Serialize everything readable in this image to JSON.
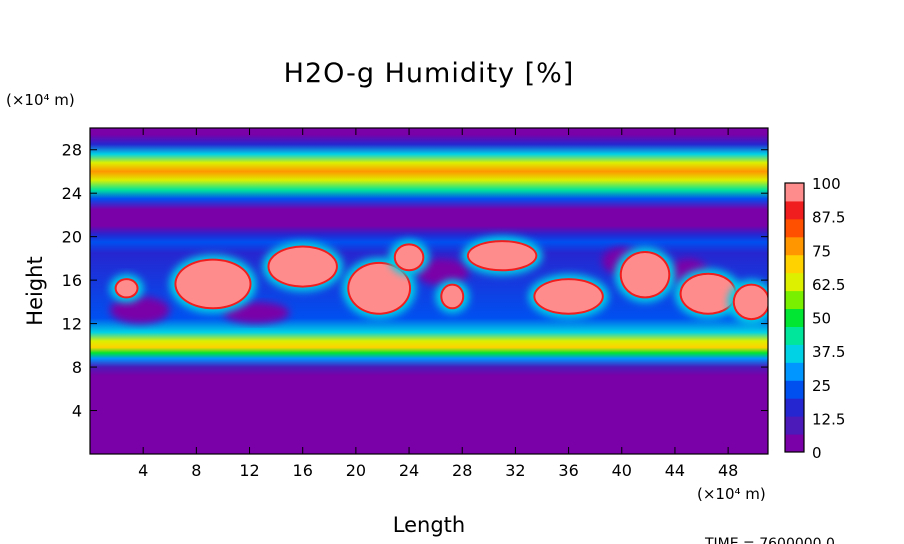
{
  "chart_data": {
    "type": "heatmap",
    "title": "H2O-g Humidity [%]",
    "xlabel": "Length",
    "ylabel": "Height",
    "x_unit": "(×10⁴ m)",
    "y_unit": "(×10⁴ m)",
    "xlim": [
      0,
      51
    ],
    "ylim": [
      0,
      30
    ],
    "x_ticks": [
      "4",
      "8",
      "12",
      "16",
      "20",
      "24",
      "28",
      "32",
      "36",
      "40",
      "44",
      "48"
    ],
    "y_ticks": [
      "4",
      "8",
      "12",
      "16",
      "20",
      "24",
      "28"
    ],
    "colorbar": {
      "min": 0,
      "max": 100,
      "labels": [
        "100",
        "87.5",
        "75",
        "62.5",
        "50",
        "37.5",
        "25",
        "12.5",
        "0"
      ],
      "colors": [
        "#7a00a8",
        "#4b1ab8",
        "#2626d0",
        "#0050f0",
        "#0096ff",
        "#00d2e6",
        "#00e69b",
        "#00e632",
        "#78f000",
        "#dcf000",
        "#ffd200",
        "#ff9600",
        "#ff5000",
        "#f01e1e",
        "#ff8c8c"
      ]
    },
    "height_profile": [
      {
        "y": 0,
        "value": 0
      },
      {
        "y": 6.6,
        "value": 0
      },
      {
        "y": 7.2,
        "value": 4
      },
      {
        "y": 8.0,
        "value": 12
      },
      {
        "y": 8.8,
        "value": 28
      },
      {
        "y": 9.3,
        "value": 50
      },
      {
        "y": 9.8,
        "value": 72
      },
      {
        "y": 10.4,
        "value": 62
      },
      {
        "y": 11.2,
        "value": 38
      },
      {
        "y": 12.5,
        "value": 22
      },
      {
        "y": 18.5,
        "value": 18
      },
      {
        "y": 19.5,
        "value": 26
      },
      {
        "y": 20.2,
        "value": 14
      },
      {
        "y": 21.0,
        "value": 3
      },
      {
        "y": 22.5,
        "value": 4
      },
      {
        "y": 23.5,
        "value": 22
      },
      {
        "y": 24.3,
        "value": 45
      },
      {
        "y": 25.2,
        "value": 62
      },
      {
        "y": 26.0,
        "value": 78
      },
      {
        "y": 26.8,
        "value": 62
      },
      {
        "y": 27.6,
        "value": 38
      },
      {
        "y": 28.5,
        "value": 16
      },
      {
        "y": 29.4,
        "value": 6
      },
      {
        "y": 30,
        "value": 3
      }
    ],
    "saturated_cells": [
      {
        "x": [
          6.5,
          12
        ],
        "y": [
          13.5,
          17.8
        ]
      },
      {
        "x": [
          13.5,
          18.5
        ],
        "y": [
          15.5,
          19.0
        ]
      },
      {
        "x": [
          19.5,
          24
        ],
        "y": [
          13.0,
          17.5
        ]
      },
      {
        "x": [
          23,
          25
        ],
        "y": [
          17.0,
          19.2
        ]
      },
      {
        "x": [
          26.5,
          28
        ],
        "y": [
          13.5,
          15.5
        ]
      },
      {
        "x": [
          28.5,
          33.5
        ],
        "y": [
          17.0,
          19.5
        ]
      },
      {
        "x": [
          33.5,
          38.5
        ],
        "y": [
          13.0,
          16.0
        ]
      },
      {
        "x": [
          40,
          43.5
        ],
        "y": [
          14.5,
          18.5
        ]
      },
      {
        "x": [
          44.5,
          48.5
        ],
        "y": [
          13.0,
          16.5
        ]
      },
      {
        "x": [
          48.5,
          51
        ],
        "y": [
          12.5,
          15.5
        ]
      },
      {
        "x": [
          2,
          3.5
        ],
        "y": [
          14.5,
          16.0
        ]
      }
    ],
    "dry_pockets": [
      {
        "x": [
          1.5,
          6
        ],
        "y": [
          12.0,
          14.5
        ]
      },
      {
        "x": [
          10,
          15
        ],
        "y": [
          12.0,
          14.0
        ]
      },
      {
        "x": [
          24.5,
          28.5
        ],
        "y": [
          15.5,
          18.0
        ]
      },
      {
        "x": [
          38.5,
          41.5
        ],
        "y": [
          16.5,
          19.0
        ]
      },
      {
        "x": [
          43.5,
          46.5
        ],
        "y": [
          15.5,
          18.0
        ]
      }
    ]
  },
  "footer": {
    "time_text": "TIME = 7600000.0"
  }
}
